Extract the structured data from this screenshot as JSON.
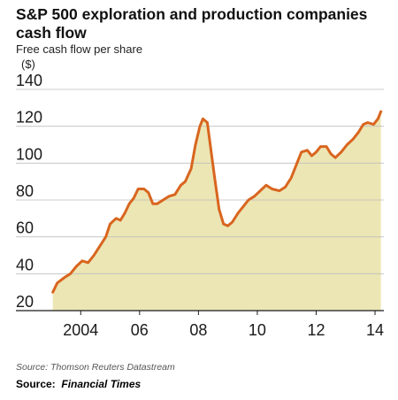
{
  "title": "S&P 500 exploration and production companies cash flow",
  "subtitle": "Free cash flow per share",
  "unit": "($)",
  "source_line": "Source: Thomson Reuters Datastream",
  "footer": {
    "prefix": "Source:",
    "name": "Financial Times"
  },
  "colors": {
    "line": "#d9651f",
    "area": "#ece6b4",
    "grid": "#bdbdbd",
    "axis": "#1a1a1a"
  },
  "chart_data": {
    "type": "area",
    "title": "S&P 500 exploration and production companies cash flow",
    "ylabel": "Free cash flow per share ($)",
    "xlabel": "",
    "ylim": [
      20,
      140
    ],
    "xlim": [
      2003.0,
      2014.3
    ],
    "yticks": [
      20,
      40,
      60,
      80,
      100,
      120,
      140
    ],
    "xticks": [
      {
        "x": 2004,
        "label": "2004"
      },
      {
        "x": 2006,
        "label": "06"
      },
      {
        "x": 2008,
        "label": "08"
      },
      {
        "x": 2010,
        "label": "10"
      },
      {
        "x": 2012,
        "label": "12"
      },
      {
        "x": 2014,
        "label": "14"
      }
    ],
    "grid": true,
    "series": [
      {
        "values": [
          [
            2003.05,
            30
          ],
          [
            2003.2,
            35
          ],
          [
            2003.45,
            38
          ],
          [
            2003.65,
            40
          ],
          [
            2003.85,
            44
          ],
          [
            2004.05,
            47
          ],
          [
            2004.25,
            46
          ],
          [
            2004.45,
            50
          ],
          [
            2004.65,
            55
          ],
          [
            2004.85,
            60
          ],
          [
            2005.0,
            67
          ],
          [
            2005.2,
            70
          ],
          [
            2005.35,
            69
          ],
          [
            2005.5,
            73
          ],
          [
            2005.65,
            78
          ],
          [
            2005.8,
            81
          ],
          [
            2005.95,
            86
          ],
          [
            2006.15,
            86
          ],
          [
            2006.3,
            84
          ],
          [
            2006.45,
            78
          ],
          [
            2006.6,
            78
          ],
          [
            2006.8,
            80
          ],
          [
            2007.0,
            82
          ],
          [
            2007.2,
            83
          ],
          [
            2007.4,
            88
          ],
          [
            2007.55,
            90
          ],
          [
            2007.75,
            97
          ],
          [
            2007.9,
            110
          ],
          [
            2008.05,
            120
          ],
          [
            2008.15,
            124
          ],
          [
            2008.3,
            122
          ],
          [
            2008.4,
            110
          ],
          [
            2008.55,
            92
          ],
          [
            2008.7,
            75
          ],
          [
            2008.85,
            67
          ],
          [
            2009.0,
            66
          ],
          [
            2009.15,
            68
          ],
          [
            2009.35,
            73
          ],
          [
            2009.55,
            77
          ],
          [
            2009.7,
            80
          ],
          [
            2009.9,
            82
          ],
          [
            2010.1,
            85
          ],
          [
            2010.3,
            88
          ],
          [
            2010.5,
            86
          ],
          [
            2010.75,
            85
          ],
          [
            2010.95,
            87
          ],
          [
            2011.15,
            92
          ],
          [
            2011.35,
            100
          ],
          [
            2011.5,
            106
          ],
          [
            2011.7,
            107
          ],
          [
            2011.85,
            104
          ],
          [
            2012.0,
            106
          ],
          [
            2012.15,
            109
          ],
          [
            2012.35,
            109
          ],
          [
            2012.5,
            105
          ],
          [
            2012.65,
            103
          ],
          [
            2012.85,
            106
          ],
          [
            2013.05,
            110
          ],
          [
            2013.25,
            113
          ],
          [
            2013.45,
            117
          ],
          [
            2013.6,
            121
          ],
          [
            2013.75,
            122
          ],
          [
            2013.95,
            121
          ],
          [
            2014.1,
            124
          ],
          [
            2014.2,
            128
          ]
        ]
      }
    ]
  }
}
